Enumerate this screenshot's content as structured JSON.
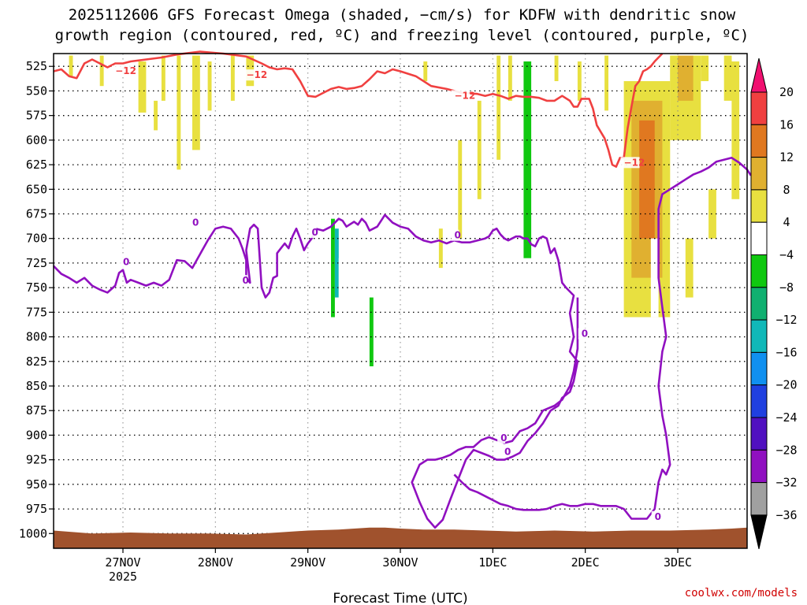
{
  "title_line1": "2025112606 GFS Forecast Omega (shaded, −cm/s) for KDFW with dendritic snow",
  "title_line2": "growth region (contoured, red, ºC) and freezing level (contoured, purple, ºC)",
  "xlabel": "Forecast Time (UTC)",
  "watermark": "coolwx.com/models",
  "chart_data": {
    "type": "heatmap",
    "title": "2025112606 GFS Forecast Omega (shaded, −cm/s) for KDFW with dendritic snow growth region (contoured, red, ºC) and freezing level (contoured, purple, ºC)",
    "xlabel": "Forecast Time (UTC)",
    "ylabel": "",
    "x_range": [
      "2025-11-26 06Z",
      "2025-12-03 18Z"
    ],
    "x_ticks": [
      {
        "label": "27NOV",
        "sub": "2025",
        "hours": 18
      },
      {
        "label": "28NOV",
        "sub": "",
        "hours": 42
      },
      {
        "label": "29NOV",
        "sub": "",
        "hours": 66
      },
      {
        "label": "30NOV",
        "sub": "",
        "hours": 90
      },
      {
        "label": "1DEC",
        "sub": "",
        "hours": 114
      },
      {
        "label": "2DEC",
        "sub": "",
        "hours": 138
      },
      {
        "label": "3DEC",
        "sub": "",
        "hours": 162
      }
    ],
    "y_ticks": [
      525,
      550,
      575,
      600,
      625,
      650,
      675,
      700,
      725,
      750,
      775,
      800,
      825,
      850,
      875,
      900,
      925,
      950,
      975,
      1000
    ],
    "y_range": [
      1015,
      512
    ],
    "grid": true,
    "colorbar": {
      "labels": [
        "20",
        "16",
        "12",
        "8",
        "4",
        "−4",
        "−8",
        "−12",
        "−16",
        "−20",
        "−24",
        "−28",
        "−32",
        "−36"
      ],
      "colors": [
        "#f01070",
        "#f04040",
        "#e07820",
        "#e0b030",
        "#e8e040",
        "#ffffff",
        "#10c810",
        "#10b070",
        "#10b8b8",
        "#1090f0",
        "#2040e0",
        "#5010c0",
        "#9010c0",
        "#a0a0a0"
      ]
    },
    "contour_labels": [
      {
        "text": "−12",
        "color": "#f04040"
      },
      {
        "text": "−12",
        "color": "#f04040"
      },
      {
        "text": "−12",
        "color": "#f04040"
      },
      {
        "text": "−12",
        "color": "#f04040"
      },
      {
        "text": "0",
        "color": "#9010c0"
      },
      {
        "text": "0",
        "color": "#9010c0"
      },
      {
        "text": "0",
        "color": "#9010c0"
      },
      {
        "text": "0",
        "color": "#9010c0"
      },
      {
        "text": "0",
        "color": "#9010c0"
      },
      {
        "text": "0",
        "color": "#9010c0"
      },
      {
        "text": "0",
        "color": "#9010c0"
      },
      {
        "text": "0",
        "color": "#9010c0"
      },
      {
        "text": "0",
        "color": "#9010c0"
      }
    ],
    "series": [
      {
        "name": "dendritic snow growth region (-12 ºC)",
        "color": "#f04040",
        "points": [
          [
            0,
            530
          ],
          [
            2,
            528
          ],
          [
            4,
            535
          ],
          [
            6,
            537
          ],
          [
            8,
            522
          ],
          [
            10,
            518
          ],
          [
            12,
            522
          ],
          [
            14,
            526
          ],
          [
            16,
            522
          ],
          [
            18,
            522
          ],
          [
            20,
            520
          ],
          [
            24,
            518
          ],
          [
            28,
            516
          ],
          [
            32,
            513
          ],
          [
            38,
            510
          ],
          [
            44,
            512
          ],
          [
            50,
            515
          ],
          [
            54,
            522
          ],
          [
            56,
            526
          ],
          [
            58,
            528
          ],
          [
            60,
            527
          ],
          [
            62,
            528
          ],
          [
            64,
            540
          ],
          [
            66,
            555
          ],
          [
            68,
            556
          ],
          [
            70,
            552
          ],
          [
            72,
            548
          ],
          [
            74,
            546
          ],
          [
            76,
            548
          ],
          [
            78,
            547
          ],
          [
            80,
            545
          ],
          [
            82,
            538
          ],
          [
            84,
            530
          ],
          [
            86,
            532
          ],
          [
            88,
            528
          ],
          [
            90,
            530
          ],
          [
            94,
            535
          ],
          [
            98,
            545
          ],
          [
            102,
            548
          ],
          [
            106,
            552
          ],
          [
            110,
            553
          ],
          [
            112,
            555
          ],
          [
            114,
            553
          ],
          [
            116,
            555
          ],
          [
            118,
            558
          ],
          [
            120,
            555
          ],
          [
            122,
            556
          ],
          [
            124,
            556
          ],
          [
            126,
            557
          ],
          [
            128,
            560
          ],
          [
            130,
            560
          ],
          [
            132,
            555
          ],
          [
            134,
            560
          ],
          [
            135,
            566
          ],
          [
            136,
            566
          ],
          [
            137,
            558
          ],
          [
            139,
            558
          ],
          [
            140,
            568
          ],
          [
            141,
            585
          ],
          [
            143,
            598
          ],
          [
            144,
            610
          ],
          [
            145,
            625
          ],
          [
            146,
            627
          ],
          [
            147,
            618
          ],
          [
            148,
            618
          ],
          [
            149,
            588
          ],
          [
            150,
            566
          ],
          [
            151,
            545
          ],
          [
            152,
            540
          ],
          [
            153,
            530
          ],
          [
            154,
            528
          ],
          [
            155,
            525
          ],
          [
            156,
            520
          ],
          [
            158,
            512
          ]
        ]
      },
      {
        "name": "freezing level (0 ºC)",
        "color": "#9010c0",
        "points": [
          [
            0,
            728
          ],
          [
            2,
            736
          ],
          [
            4,
            740
          ],
          [
            6,
            745
          ],
          [
            8,
            740
          ],
          [
            10,
            748
          ],
          [
            12,
            752
          ],
          [
            14,
            755
          ],
          [
            16,
            748
          ],
          [
            17,
            735
          ],
          [
            18,
            732
          ],
          [
            19,
            745
          ],
          [
            20,
            742
          ],
          [
            22,
            745
          ],
          [
            24,
            748
          ],
          [
            26,
            745
          ],
          [
            28,
            748
          ],
          [
            30,
            742
          ],
          [
            32,
            722
          ],
          [
            34,
            723
          ],
          [
            36,
            730
          ],
          [
            38,
            716
          ],
          [
            40,
            702
          ],
          [
            42,
            690
          ],
          [
            44,
            688
          ],
          [
            46,
            690
          ],
          [
            48,
            700
          ],
          [
            49,
            710
          ],
          [
            50,
            722
          ],
          [
            50,
            740
          ],
          [
            51,
            745
          ],
          [
            50,
            712
          ],
          [
            51,
            690
          ],
          [
            52,
            686
          ],
          [
            53,
            690
          ],
          [
            54,
            750
          ],
          [
            55,
            760
          ],
          [
            56,
            755
          ],
          [
            57,
            740
          ],
          [
            58,
            738
          ],
          [
            58,
            715
          ],
          [
            59,
            710
          ],
          [
            60,
            705
          ],
          [
            61,
            710
          ],
          [
            62,
            698
          ],
          [
            63,
            690
          ],
          [
            64,
            700
          ],
          [
            65,
            712
          ],
          [
            66,
            705
          ],
          [
            67,
            700
          ],
          [
            68,
            690
          ],
          [
            70,
            692
          ],
          [
            72,
            688
          ],
          [
            74,
            680
          ],
          [
            75,
            682
          ],
          [
            76,
            688
          ],
          [
            78,
            683
          ],
          [
            79,
            686
          ],
          [
            80,
            680
          ],
          [
            81,
            684
          ],
          [
            82,
            692
          ],
          [
            84,
            688
          ],
          [
            86,
            676
          ],
          [
            88,
            684
          ],
          [
            90,
            688
          ],
          [
            92,
            690
          ],
          [
            94,
            698
          ],
          [
            96,
            702
          ],
          [
            98,
            704
          ],
          [
            100,
            702
          ],
          [
            102,
            705
          ],
          [
            104,
            702
          ],
          [
            106,
            704
          ],
          [
            108,
            704
          ],
          [
            110,
            702
          ],
          [
            112,
            700
          ],
          [
            113,
            698
          ],
          [
            114,
            692
          ],
          [
            115,
            690
          ],
          [
            116,
            696
          ],
          [
            117,
            700
          ],
          [
            118,
            702
          ],
          [
            119,
            700
          ],
          [
            120,
            698
          ],
          [
            121,
            698
          ],
          [
            122,
            700
          ],
          [
            123,
            700
          ],
          [
            124,
            706
          ],
          [
            125,
            708
          ],
          [
            126,
            700
          ],
          [
            127,
            698
          ],
          [
            128,
            700
          ],
          [
            129,
            715
          ],
          [
            130,
            710
          ],
          [
            131,
            722
          ],
          [
            132,
            745
          ],
          [
            133,
            750
          ],
          [
            134,
            754
          ],
          [
            135,
            758
          ],
          [
            134,
            776
          ],
          [
            135,
            800
          ],
          [
            134,
            815
          ],
          [
            136,
            825
          ],
          [
            135,
            845
          ],
          [
            134,
            856
          ],
          [
            132,
            862
          ],
          [
            131,
            870
          ],
          [
            129,
            875
          ],
          [
            127,
            888
          ],
          [
            125,
            898
          ],
          [
            123,
            906
          ],
          [
            121,
            918
          ],
          [
            119,
            922
          ],
          [
            117,
            925
          ],
          [
            115,
            925
          ],
          [
            113,
            921
          ],
          [
            111,
            918
          ],
          [
            109,
            915
          ],
          [
            107,
            925
          ],
          [
            105,
            945
          ],
          [
            103,
            965
          ],
          [
            101,
            986
          ],
          [
            99,
            994
          ],
          [
            97,
            985
          ],
          [
            95,
            968
          ],
          [
            93,
            948
          ],
          [
            95,
            930
          ],
          [
            97,
            925
          ],
          [
            99,
            925
          ],
          [
            101,
            923
          ],
          [
            103,
            920
          ],
          [
            105,
            915
          ],
          [
            107,
            912
          ],
          [
            109,
            912
          ],
          [
            111,
            905
          ],
          [
            113,
            902
          ],
          [
            115,
            905
          ],
          [
            117,
            908
          ],
          [
            119,
            906
          ],
          [
            121,
            896
          ],
          [
            123,
            893
          ],
          [
            125,
            888
          ],
          [
            127,
            875
          ],
          [
            130,
            870
          ],
          [
            132,
            864
          ],
          [
            134,
            850
          ],
          [
            135,
            835
          ],
          [
            136,
            812
          ],
          [
            136,
            780
          ],
          [
            136,
            760
          ]
        ]
      },
      {
        "name": "freezing level (0 ºC) lower",
        "color": "#9010c0",
        "points": [
          [
            104,
            940
          ],
          [
            106,
            948
          ],
          [
            108,
            955
          ],
          [
            110,
            958
          ],
          [
            112,
            962
          ],
          [
            114,
            966
          ],
          [
            116,
            970
          ],
          [
            118,
            972
          ],
          [
            120,
            975
          ],
          [
            122,
            976
          ],
          [
            124,
            976
          ],
          [
            126,
            976
          ],
          [
            128,
            975
          ],
          [
            130,
            972
          ],
          [
            132,
            970
          ],
          [
            134,
            972
          ],
          [
            136,
            972
          ],
          [
            138,
            970
          ],
          [
            140,
            970
          ],
          [
            142,
            972
          ],
          [
            144,
            972
          ],
          [
            146,
            972
          ],
          [
            148,
            975
          ],
          [
            150,
            985
          ],
          [
            152,
            985
          ],
          [
            154,
            985
          ],
          [
            156,
            975
          ],
          [
            157,
            948
          ],
          [
            158,
            935
          ],
          [
            159,
            940
          ],
          [
            160,
            930
          ],
          [
            159,
            900
          ],
          [
            158,
            880
          ],
          [
            157,
            850
          ],
          [
            158,
            815
          ],
          [
            159,
            800
          ],
          [
            158,
            770
          ],
          [
            157,
            740
          ],
          [
            157,
            700
          ],
          [
            157,
            670
          ],
          [
            158,
            655
          ],
          [
            160,
            650
          ],
          [
            162,
            645
          ],
          [
            164,
            640
          ],
          [
            166,
            635
          ],
          [
            168,
            632
          ],
          [
            170,
            628
          ],
          [
            172,
            622
          ],
          [
            174,
            620
          ],
          [
            176,
            618
          ],
          [
            178,
            623
          ],
          [
            180,
            630
          ],
          [
            181,
            636
          ]
        ]
      }
    ]
  }
}
